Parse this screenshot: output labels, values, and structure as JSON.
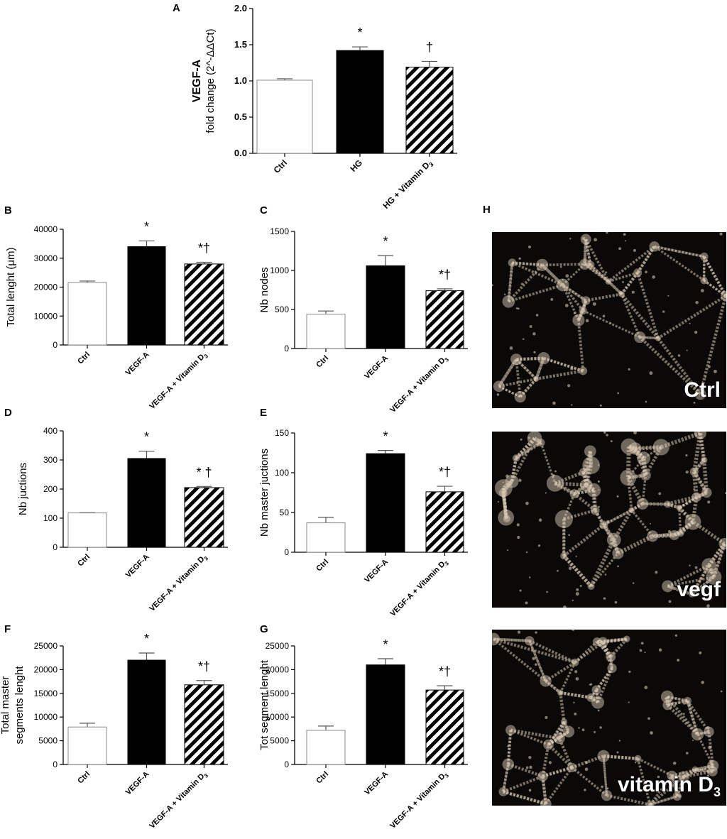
{
  "chart_data": [
    {
      "panel": "A",
      "type": "bar",
      "categories": [
        "Ctrl",
        "HG",
        "HG + Vitamin D3"
      ],
      "values": [
        1.01,
        1.42,
        1.19
      ],
      "errors": [
        0.02,
        0.05,
        0.08
      ],
      "significance": [
        "",
        "*",
        "†"
      ],
      "ylabel_bold": "VEGF-A",
      "ylabel": "fold change (2^-ΔΔCt)",
      "ylim": [
        0,
        2.0
      ],
      "yticks": [
        "0.0",
        "0.5",
        "1.0",
        "1.5",
        "2.0"
      ],
      "fills": [
        "white",
        "black",
        "hatch"
      ]
    },
    {
      "panel": "B",
      "type": "bar",
      "categories": [
        "Ctrl",
        "VEGF-A",
        "VEGF-A + Vitamin D3"
      ],
      "values": [
        21600,
        34000,
        28000
      ],
      "errors": [
        500,
        2000,
        600
      ],
      "significance": [
        "",
        "*",
        "*†"
      ],
      "ylabel": "Total lenght (μm)",
      "ylim": [
        0,
        40000
      ],
      "yticks": [
        "0",
        "10000",
        "20000",
        "30000",
        "40000"
      ],
      "fills": [
        "white",
        "black",
        "hatch"
      ]
    },
    {
      "panel": "C",
      "type": "bar",
      "categories": [
        "Ctrl",
        "VEGF-A",
        "VEGF-A + Vitamin D3"
      ],
      "values": [
        440,
        1060,
        740
      ],
      "errors": [
        40,
        130,
        25
      ],
      "significance": [
        "",
        "*",
        "*†"
      ],
      "ylabel": "Nb nodes",
      "ylim": [
        0,
        1500
      ],
      "yticks": [
        "0",
        "500",
        "1000",
        "1500"
      ],
      "fills": [
        "white",
        "black",
        "hatch"
      ]
    },
    {
      "panel": "D",
      "type": "bar",
      "categories": [
        "Ctrl",
        "VEGF-A",
        "VEGF-A + Vitamin D3"
      ],
      "values": [
        118,
        305,
        205
      ],
      "errors": [
        1,
        25,
        4
      ],
      "significance": [
        "",
        "*",
        "* †"
      ],
      "ylabel": "Nb juctions",
      "ylim": [
        0,
        400
      ],
      "yticks": [
        "0",
        "100",
        "200",
        "300",
        "400"
      ],
      "fills": [
        "white",
        "black",
        "hatch"
      ]
    },
    {
      "panel": "E",
      "type": "bar",
      "categories": [
        "Ctrl",
        "VEGF-A",
        "VEGF-A + Vitamin D3"
      ],
      "values": [
        37,
        124,
        76
      ],
      "errors": [
        7,
        4,
        7
      ],
      "significance": [
        "",
        "*",
        "*†"
      ],
      "ylabel": "Nb master  juctions",
      "ylim": [
        0,
        150
      ],
      "yticks": [
        "0",
        "50",
        "100",
        "150"
      ],
      "fills": [
        "white",
        "black",
        "hatch"
      ]
    },
    {
      "panel": "F",
      "type": "bar",
      "categories": [
        "Ctrl",
        "VEGF-A",
        "VEGF-A + Vitamin D3"
      ],
      "values": [
        7900,
        22000,
        16800
      ],
      "errors": [
        800,
        1500,
        900
      ],
      "significance": [
        "",
        "*",
        "*†"
      ],
      "ylabel": "Total master",
      "ylabel2": "segments lenght",
      "ylim": [
        0,
        25000
      ],
      "yticks": [
        "0",
        "5000",
        "10000",
        "15000",
        "20000",
        "25000"
      ],
      "fills": [
        "white",
        "black",
        "hatch"
      ]
    },
    {
      "panel": "G",
      "type": "bar",
      "categories": [
        "Ctrl",
        "VEGF-A",
        "VEGF-A + Vitamin D3"
      ],
      "values": [
        7200,
        21000,
        15700
      ],
      "errors": [
        900,
        1300,
        900
      ],
      "significance": [
        "",
        "*",
        "*†"
      ],
      "ylabel": "Tot segment lenght",
      "ylim": [
        0,
        25000
      ],
      "yticks": [
        "0",
        "5000",
        "10000",
        "15000",
        "20000",
        "25000"
      ],
      "fills": [
        "white",
        "black",
        "hatch"
      ]
    }
  ],
  "images": {
    "panel": "H",
    "labels": [
      "Ctrl",
      "vegf",
      "vitamin D3"
    ]
  },
  "colors": {
    "bar_dark": "#000000",
    "bar_light": "#ffffff",
    "hatch": "#000000",
    "cells": "#d8c8b2",
    "background_dark": "#0b0908"
  }
}
